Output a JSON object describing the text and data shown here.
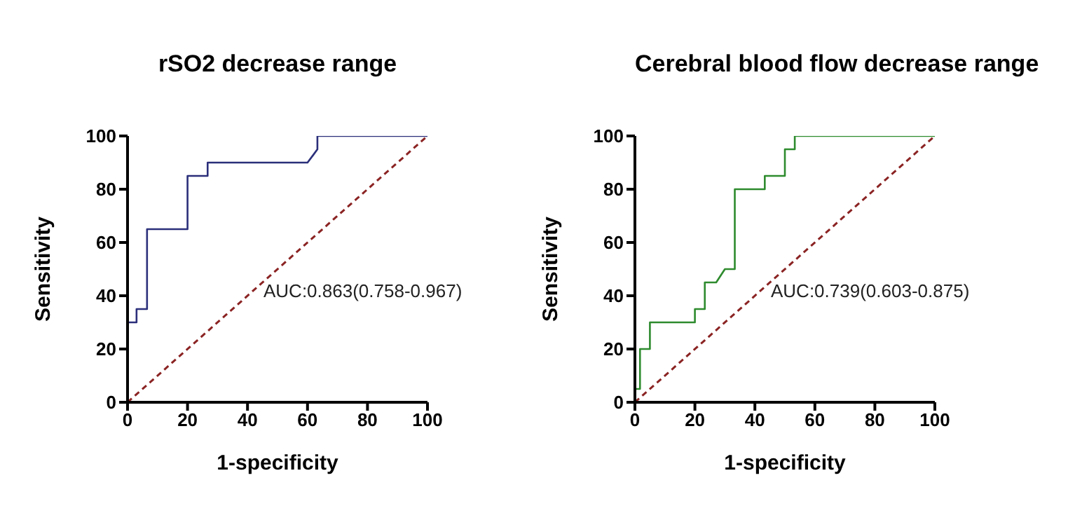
{
  "chart_data": [
    {
      "type": "line",
      "title": "rSO2 decrease range",
      "xlabel": "1-specificity",
      "ylabel": "Sensitivity",
      "xlim": [
        0,
        100
      ],
      "ylim": [
        0,
        100
      ],
      "xticks": [
        0,
        20,
        40,
        60,
        80,
        100
      ],
      "yticks": [
        0,
        20,
        40,
        60,
        80,
        100
      ],
      "grid": false,
      "marker": "none",
      "annotations": [
        "AUC:0.863(0.758-0.967)"
      ],
      "series": [
        {
          "color": "#2b2f7a",
          "x": [
            0,
            0,
            3,
            3,
            6.5,
            6.5,
            20,
            20,
            26.7,
            26.7,
            60,
            62,
            63.3,
            63.3,
            100
          ],
          "values": [
            0,
            30,
            30,
            35,
            35,
            65,
            65,
            85,
            85,
            90,
            90,
            93,
            95,
            100,
            100
          ]
        },
        {
          "color": "#8b2323",
          "line_style": "dashed",
          "x": [
            0,
            100
          ],
          "values": [
            0,
            100
          ]
        }
      ]
    },
    {
      "type": "line",
      "title": "Cerebral blood flow decrease range",
      "xlabel": "1-specificity",
      "ylabel": "Sensitivity",
      "xlim": [
        0,
        100
      ],
      "ylim": [
        0,
        100
      ],
      "xticks": [
        0,
        20,
        40,
        60,
        80,
        100
      ],
      "yticks": [
        0,
        20,
        40,
        60,
        80,
        100
      ],
      "grid": false,
      "marker": "none",
      "annotations": [
        "AUC:0.739(0.603-0.875)"
      ],
      "series": [
        {
          "color": "#2e8b2e",
          "x": [
            0,
            0,
            1.7,
            1.7,
            5,
            5,
            20,
            20,
            23.3,
            23.3,
            27.1,
            30,
            33.3,
            33.3,
            43.3,
            43.3,
            50,
            50,
            53.3,
            53.3,
            100
          ],
          "values": [
            0,
            5,
            5,
            20,
            20,
            30,
            30,
            35,
            35,
            45,
            45,
            50,
            50,
            80,
            80,
            85,
            85,
            95,
            95,
            100,
            100
          ]
        },
        {
          "color": "#8b2323",
          "line_style": "dashed",
          "x": [
            0,
            100
          ],
          "values": [
            0,
            100
          ]
        }
      ]
    }
  ]
}
